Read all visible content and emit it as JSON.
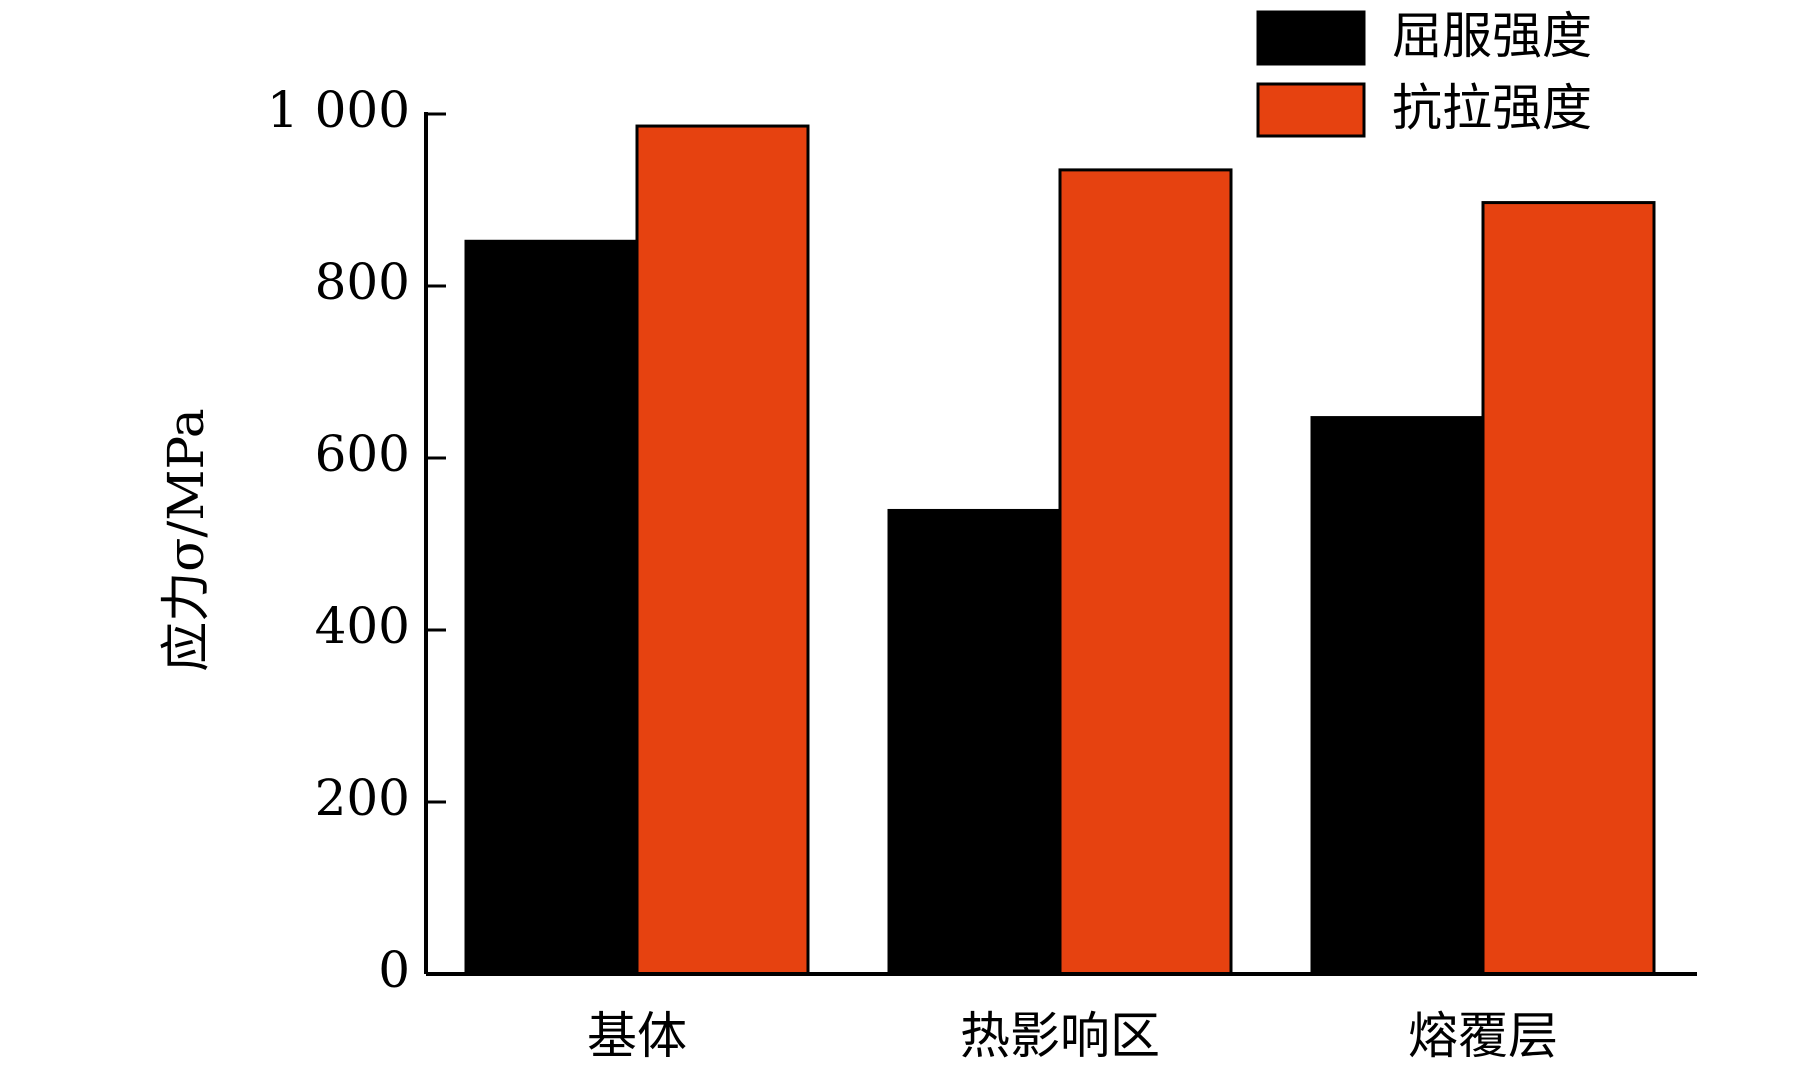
{
  "chart_data": {
    "type": "bar",
    "categories": [
      "基体",
      "热影响区",
      "熔覆层"
    ],
    "series": [
      {
        "name": "屈服强度",
        "color": "#000000",
        "values": [
          852,
          539,
          647
        ]
      },
      {
        "name": "抗拉强度",
        "color": "#e64210",
        "values": [
          986,
          935,
          897
        ]
      }
    ],
    "y_label": "应力σ/MPa",
    "ylim": [
      0,
      1000
    ],
    "yticks": [
      0,
      200,
      400,
      600,
      800,
      {
        "value": 1000,
        "label": "1 000"
      }
    ],
    "legend": "top-right"
  }
}
